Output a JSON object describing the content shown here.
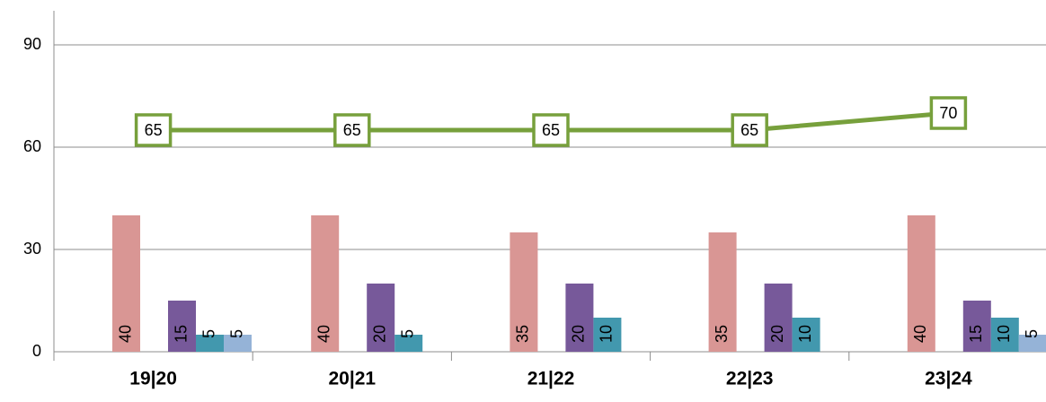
{
  "chart_data": {
    "type": "bar",
    "categories": [
      "19|20",
      "20|21",
      "21|22",
      "22|23",
      "23|24"
    ],
    "series": [
      {
        "color": "#d99694",
        "values": [
          40,
          40,
          35,
          35,
          40
        ]
      },
      {
        "color": "#77599a",
        "values": [
          15,
          20,
          20,
          20,
          15
        ]
      },
      {
        "color": "#4298ae",
        "values": [
          5,
          5,
          10,
          10,
          10
        ]
      },
      {
        "color": "#95b3d7",
        "values": [
          5,
          null,
          null,
          null,
          5
        ]
      },
      {
        "type": "line",
        "color": "#77a03c",
        "values": [
          65,
          65,
          65,
          65,
          70
        ]
      }
    ],
    "ylim": [
      0,
      100
    ],
    "yticks": [
      0,
      30,
      60,
      90
    ],
    "grid": true
  }
}
